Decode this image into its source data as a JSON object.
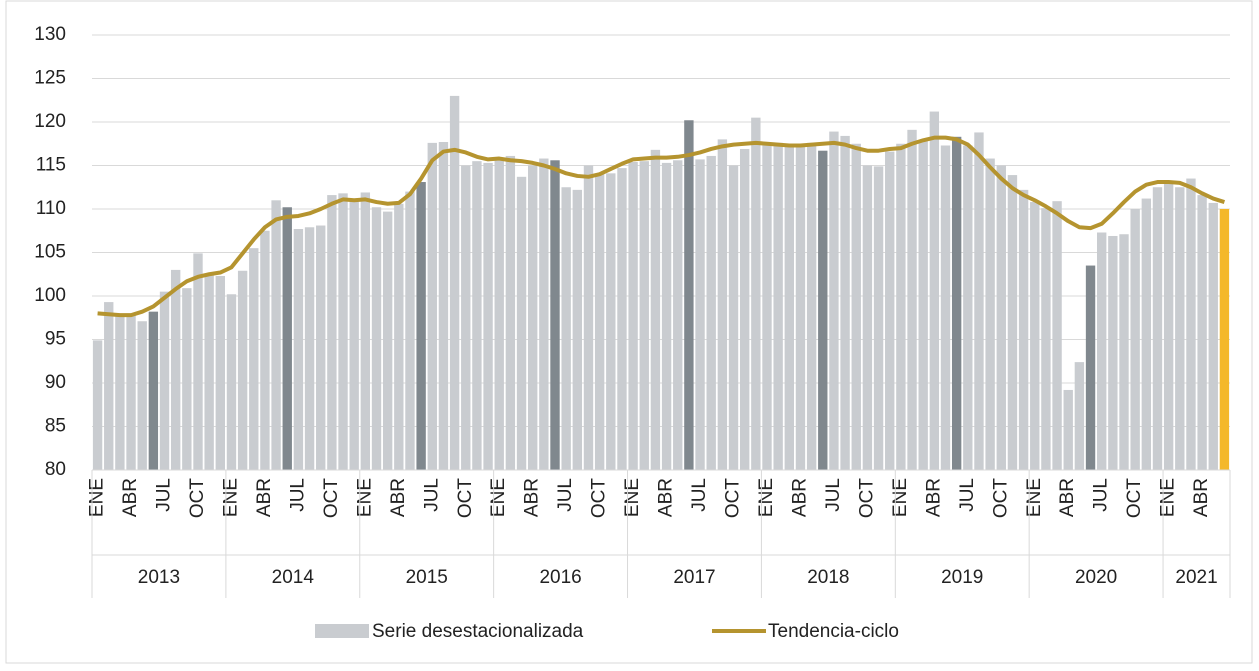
{
  "chart_data": {
    "type": "bar",
    "categories": [
      "ENE",
      null,
      null,
      "ABR",
      null,
      null,
      "JUL",
      null,
      null,
      "OCT",
      null,
      null,
      "ENE",
      null,
      null,
      "ABR",
      null,
      null,
      "JUL",
      null,
      null,
      "OCT",
      null,
      null,
      "ENE",
      null,
      null,
      "ABR",
      null,
      null,
      "JUL",
      null,
      null,
      "OCT",
      null,
      null,
      "ENE",
      null,
      null,
      "ABR",
      null,
      null,
      "JUL",
      null,
      null,
      "OCT",
      null,
      null,
      "ENE",
      null,
      null,
      "ABR",
      null,
      null,
      "JUL",
      null,
      null,
      "OCT",
      null,
      null,
      "ENE",
      null,
      null,
      "ABR",
      null,
      null,
      "JUL",
      null,
      null,
      "OCT",
      null,
      null,
      "ENE",
      null,
      null,
      "ABR",
      null,
      null,
      "JUL",
      null,
      null,
      "OCT",
      null,
      null,
      "ENE",
      null,
      null,
      "ABR",
      null,
      null,
      "JUL",
      null,
      null,
      "OCT",
      null,
      null,
      "ENE",
      null,
      null,
      "ABR",
      null,
      null
    ],
    "years": [
      "2013",
      "2014",
      "2015",
      "2016",
      "2017",
      "2018",
      "2019",
      "2020",
      "2021"
    ],
    "series": [
      {
        "name": "Serie desestacionalizada",
        "type": "bar",
        "color": "#c9ccd0",
        "values": [
          94.9,
          99.3,
          97.8,
          98.0,
          97.1,
          98.2,
          100.5,
          103.0,
          100.9,
          104.9,
          102.5,
          102.3,
          100.2,
          102.9,
          105.5,
          107.5,
          111.0,
          110.2,
          107.7,
          107.9,
          108.1,
          111.6,
          111.8,
          111.1,
          111.9,
          110.2,
          109.7,
          110.6,
          112.0,
          113.1,
          117.6,
          117.7,
          123.0,
          115.0,
          115.5,
          115.3,
          115.8,
          116.1,
          113.7,
          115.0,
          115.8,
          115.6,
          112.5,
          112.2,
          115.0,
          114.1,
          114.1,
          114.7,
          115.4,
          115.5,
          116.8,
          115.3,
          115.6,
          120.2,
          115.7,
          116.1,
          118.0,
          115.0,
          116.9,
          120.5,
          117.4,
          117.6,
          117.3,
          117.4,
          117.6,
          116.7,
          118.9,
          118.4,
          117.5,
          115.0,
          114.9,
          116.6,
          117.5,
          119.1,
          117.8,
          121.2,
          117.3,
          118.3,
          117.3,
          118.8,
          115.8,
          115.0,
          113.9,
          112.2,
          110.8,
          110.1,
          110.9,
          89.2,
          92.4,
          103.5,
          107.3,
          106.9,
          107.1,
          110.0,
          111.2,
          112.5,
          113.2,
          112.5,
          113.5,
          111.6,
          110.7,
          110.0
        ],
        "colors": [
          "#c9ccd0",
          "#c9ccd0",
          "#c9ccd0",
          "#c9ccd0",
          "#c9ccd0",
          "#80888e",
          "#c9ccd0",
          "#c9ccd0",
          "#c9ccd0",
          "#c9ccd0",
          "#c9ccd0",
          "#c9ccd0",
          "#c9ccd0",
          "#c9ccd0",
          "#c9ccd0",
          "#c9ccd0",
          "#c9ccd0",
          "#80888e",
          "#c9ccd0",
          "#c9ccd0",
          "#c9ccd0",
          "#c9ccd0",
          "#c9ccd0",
          "#c9ccd0",
          "#c9ccd0",
          "#c9ccd0",
          "#c9ccd0",
          "#c9ccd0",
          "#c9ccd0",
          "#80888e",
          "#c9ccd0",
          "#c9ccd0",
          "#c9ccd0",
          "#c9ccd0",
          "#c9ccd0",
          "#c9ccd0",
          "#c9ccd0",
          "#c9ccd0",
          "#c9ccd0",
          "#c9ccd0",
          "#c9ccd0",
          "#80888e",
          "#c9ccd0",
          "#c9ccd0",
          "#c9ccd0",
          "#c9ccd0",
          "#c9ccd0",
          "#c9ccd0",
          "#c9ccd0",
          "#c9ccd0",
          "#c9ccd0",
          "#c9ccd0",
          "#c9ccd0",
          "#80888e",
          "#c9ccd0",
          "#c9ccd0",
          "#c9ccd0",
          "#c9ccd0",
          "#c9ccd0",
          "#c9ccd0",
          "#c9ccd0",
          "#c9ccd0",
          "#c9ccd0",
          "#c9ccd0",
          "#c9ccd0",
          "#80888e",
          "#c9ccd0",
          "#c9ccd0",
          "#c9ccd0",
          "#c9ccd0",
          "#c9ccd0",
          "#c9ccd0",
          "#c9ccd0",
          "#c9ccd0",
          "#c9ccd0",
          "#c9ccd0",
          "#c9ccd0",
          "#80888e",
          "#c9ccd0",
          "#c9ccd0",
          "#c9ccd0",
          "#c9ccd0",
          "#c9ccd0",
          "#c9ccd0",
          "#c9ccd0",
          "#c9ccd0",
          "#c9ccd0",
          "#c9ccd0",
          "#c9ccd0",
          "#80888e",
          "#c9ccd0",
          "#c9ccd0",
          "#c9ccd0",
          "#c9ccd0",
          "#c9ccd0",
          "#c9ccd0",
          "#c9ccd0",
          "#c9ccd0",
          "#c9ccd0",
          "#c9ccd0",
          "#c9ccd0",
          "#f4b82a"
        ]
      },
      {
        "name": "Tendencia-ciclo",
        "type": "line",
        "color": "#b5942f",
        "values": [
          98.0,
          97.9,
          97.8,
          97.8,
          98.2,
          98.8,
          99.8,
          100.8,
          101.7,
          102.2,
          102.5,
          102.7,
          103.3,
          104.9,
          106.5,
          107.9,
          108.8,
          109.1,
          109.2,
          109.5,
          110.0,
          110.6,
          111.1,
          111.0,
          111.1,
          110.8,
          110.6,
          110.7,
          111.7,
          113.5,
          115.6,
          116.6,
          116.8,
          116.5,
          116.0,
          115.7,
          115.8,
          115.6,
          115.5,
          115.3,
          115.0,
          114.6,
          114.1,
          113.8,
          113.7,
          114.0,
          114.6,
          115.2,
          115.7,
          115.8,
          115.9,
          115.9,
          116.0,
          116.2,
          116.5,
          116.9,
          117.2,
          117.4,
          117.5,
          117.6,
          117.5,
          117.4,
          117.3,
          117.3,
          117.4,
          117.5,
          117.6,
          117.4,
          117.0,
          116.7,
          116.7,
          116.9,
          117.0,
          117.5,
          117.9,
          118.2,
          118.2,
          118.0,
          117.4,
          116.2,
          114.8,
          113.5,
          112.4,
          111.6,
          111.0,
          110.3,
          109.5,
          108.6,
          107.9,
          107.8,
          108.3,
          109.5,
          110.8,
          112.0,
          112.8,
          113.1,
          113.1,
          113.0,
          112.5,
          111.8,
          111.2,
          110.8
        ]
      }
    ],
    "ylim": [
      80,
      130
    ],
    "yticks": [
      80,
      85,
      90,
      95,
      100,
      105,
      110,
      115,
      120,
      125,
      130
    ],
    "grid": true,
    "legend": "bottom"
  }
}
